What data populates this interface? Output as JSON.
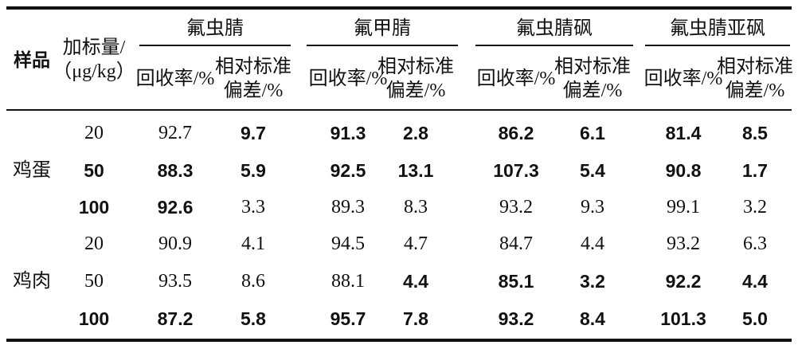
{
  "table": {
    "header": {
      "sample": "样品",
      "spike": "加标量/\n（μg/kg）",
      "groups": [
        "氟虫腈",
        "氟甲腈",
        "氟虫腈砜",
        "氟虫腈亚砜"
      ],
      "subheaders": [
        "回收率/%",
        "相对标准\n偏差/%"
      ]
    },
    "samples": [
      "鸡蛋",
      "鸡肉"
    ],
    "rows": [
      [
        "20",
        "92.7",
        "9.7",
        "91.3",
        "2.8",
        "86.2",
        "6.1",
        "81.4",
        "8.5"
      ],
      [
        "50",
        "88.3",
        "5.9",
        "92.5",
        "13.1",
        "107.3",
        "5.4",
        "90.8",
        "1.7"
      ],
      [
        "100",
        "92.6",
        "3.3",
        "89.3",
        "8.3",
        "93.2",
        "9.3",
        "99.1",
        "3.2"
      ],
      [
        "20",
        "90.9",
        "4.1",
        "94.5",
        "4.7",
        "84.7",
        "4.4",
        "93.2",
        "6.3"
      ],
      [
        "50",
        "93.5",
        "8.6",
        "88.1",
        "4.4",
        "85.1",
        "3.2",
        "92.2",
        "4.4"
      ],
      [
        "100",
        "87.2",
        "5.8",
        "95.7",
        "7.8",
        "93.2",
        "8.4",
        "101.3",
        "5.0"
      ]
    ]
  }
}
